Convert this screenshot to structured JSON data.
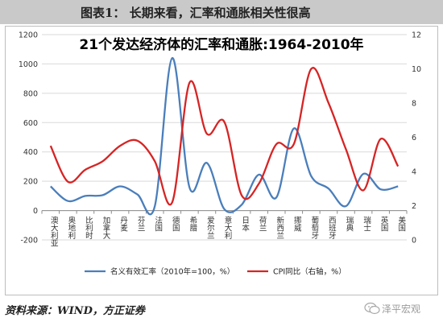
{
  "figure_caption": "图表1：  长期来看，汇率和通胀相关性很高",
  "source": "资料来源：WIND，方正证券",
  "watermark": "泽平宏观",
  "colors": {
    "series1": "#4a7ebb",
    "series2": "#d62424",
    "grid": "#d9d9d9",
    "header": "#c9c9c9"
  },
  "chart_data": {
    "type": "line",
    "title": "21个发达经济体的汇率和通胀:1964-2010年",
    "categories": [
      "澳大利亚",
      "奥地利",
      "比利时",
      "加拿大",
      "丹麦",
      "芬兰",
      "法国",
      "德国",
      "希腊",
      "爱尔兰",
      "意大利",
      "日本",
      "荷兰",
      "新西兰",
      "挪威",
      "葡萄牙",
      "西班牙",
      "瑞典",
      "瑞士",
      "英国",
      "美国"
    ],
    "ylim_left": [
      -200,
      1200
    ],
    "yticks_left": [
      "-200",
      "0",
      "200",
      "400",
      "600",
      "800",
      "1000",
      "1200"
    ],
    "ylim_right": [
      0,
      12
    ],
    "yticks_right": [
      "0",
      "2",
      "4",
      "6",
      "8",
      "10",
      "12"
    ],
    "grid": true,
    "legend_position": "bottom",
    "series": [
      {
        "name": "名义有效汇率（2010年=100，%）",
        "axis": "left",
        "color": "#4a7ebb",
        "values": [
          165,
          65,
          100,
          105,
          165,
          110,
          30,
          1040,
          155,
          325,
          10,
          40,
          245,
          90,
          560,
          235,
          150,
          30,
          250,
          145,
          165
        ]
      },
      {
        "name": "CPI同比（右轴，%）",
        "axis": "right",
        "color": "#d62424",
        "values": [
          5.5,
          3.4,
          4.1,
          4.6,
          5.5,
          5.8,
          4.6,
          2.2,
          9.2,
          6.2,
          6.9,
          2.6,
          3.3,
          5.6,
          5.6,
          10.0,
          8.0,
          5.3,
          2.9,
          5.9,
          4.3
        ]
      }
    ]
  }
}
